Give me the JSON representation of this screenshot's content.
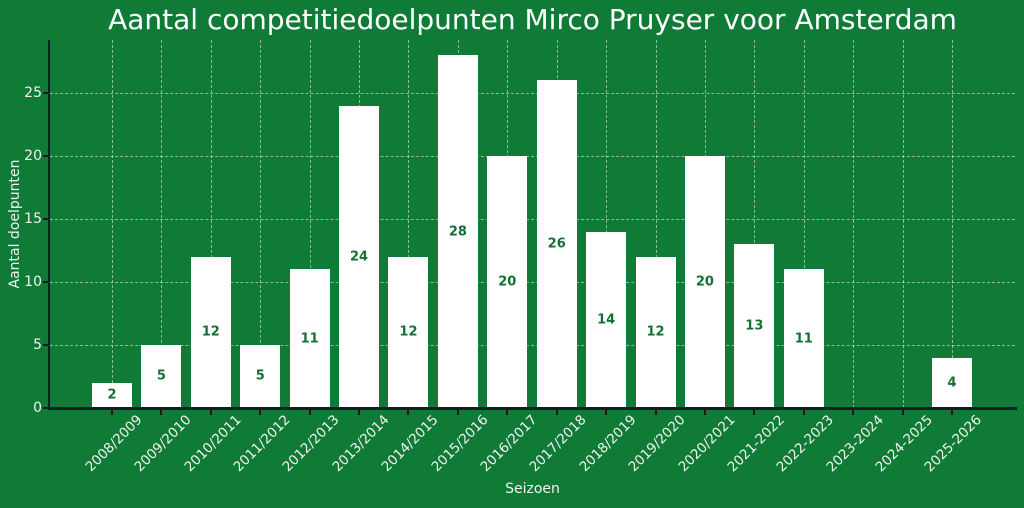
{
  "chart_data": {
    "type": "bar",
    "title": "Aantal competitiedoelpunten Mirco Pruyser voor Amsterdam",
    "xlabel": "Seizoen",
    "ylabel": "Aantal doelpunten",
    "categories": [
      "2008/2009",
      "2009/2010",
      "2010/2011",
      "2011/2012",
      "2012/2013",
      "2013/2014",
      "2014/2015",
      "2015/2016",
      "2016/2017",
      "2017/2018",
      "2018/2019",
      "2019/2020",
      "2020/2021",
      "2021-2022",
      "2022-2023",
      "2023-2024",
      "2024-2025",
      "2025-2026"
    ],
    "values": [
      2,
      5,
      12,
      5,
      11,
      24,
      12,
      28,
      20,
      26,
      14,
      12,
      20,
      13,
      11,
      0,
      0,
      4
    ],
    "value_labels_shown": true,
    "yticks": [
      0,
      5,
      10,
      15,
      20,
      25
    ],
    "ylim": [
      0,
      29.2
    ],
    "grid": "both, dashed, behind bars",
    "legend": "none",
    "colors": {
      "background": "#0F7B37",
      "bar": "#FFFFFF",
      "bar_label": "#156F35",
      "title_text": "#FFFFFF",
      "tick_text": "#F2F2F2",
      "grid": "rgba(255,255,255,0.5)",
      "axis": "#1C1C1C"
    }
  }
}
